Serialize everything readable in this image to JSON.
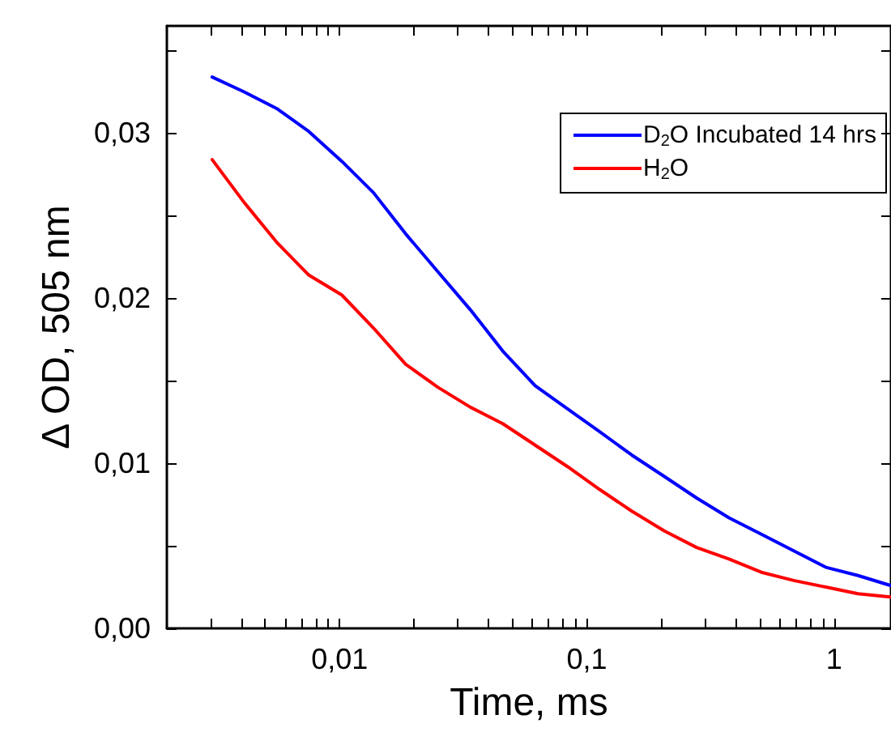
{
  "chart_data": {
    "type": "line",
    "xlabel": "Time, ms",
    "ylabel": "Δ OD, 505 nm",
    "log": "x",
    "xlim": [
      0.002,
      1.7
    ],
    "ylim": [
      0,
      0.0365
    ],
    "xticks": [
      {
        "value": 0.003,
        "label": null
      },
      {
        "value": 0.004,
        "label": null
      },
      {
        "value": 0.005,
        "label": null
      },
      {
        "value": 0.006,
        "label": null
      },
      {
        "value": 0.007,
        "label": null
      },
      {
        "value": 0.008,
        "label": null
      },
      {
        "value": 0.009,
        "label": null
      },
      {
        "value": 0.01,
        "label": "0,01"
      },
      {
        "value": 0.02,
        "label": null
      },
      {
        "value": 0.03,
        "label": null
      },
      {
        "value": 0.04,
        "label": null
      },
      {
        "value": 0.05,
        "label": null
      },
      {
        "value": 0.06,
        "label": null
      },
      {
        "value": 0.07,
        "label": null
      },
      {
        "value": 0.08,
        "label": null
      },
      {
        "value": 0.09,
        "label": null
      },
      {
        "value": 0.1,
        "label": "0,1"
      },
      {
        "value": 0.2,
        "label": null
      },
      {
        "value": 0.3,
        "label": null
      },
      {
        "value": 0.4,
        "label": null
      },
      {
        "value": 0.5,
        "label": null
      },
      {
        "value": 0.6,
        "label": null
      },
      {
        "value": 0.7,
        "label": null
      },
      {
        "value": 0.8,
        "label": null
      },
      {
        "value": 0.9,
        "label": null
      },
      {
        "value": 1,
        "label": "1"
      }
    ],
    "yticks": [
      {
        "value": 0,
        "label": "0,00"
      },
      {
        "value": 0.005,
        "label": null
      },
      {
        "value": 0.01,
        "label": "0,01"
      },
      {
        "value": 0.015,
        "label": null
      },
      {
        "value": 0.02,
        "label": "0,02"
      },
      {
        "value": 0.025,
        "label": null
      },
      {
        "value": 0.03,
        "label": "0,03"
      },
      {
        "value": 0.035,
        "label": null
      }
    ],
    "x": [
      0.00305,
      0.00411,
      0.00556,
      0.00751,
      0.0102,
      0.0137,
      0.0185,
      0.025,
      0.0338,
      0.0457,
      0.0618,
      0.0835,
      0.113,
      0.152,
      0.206,
      0.278,
      0.376,
      0.508,
      0.687,
      0.927,
      1.25,
      1.69
    ],
    "series": [
      {
        "name": "D$_{2}$O Incubated 14 hrs",
        "color": "#0000ff",
        "values": [
          0.0334,
          0.0325,
          0.0315,
          0.0301,
          0.0283,
          0.0264,
          0.0239,
          0.0216,
          0.0193,
          0.0168,
          0.0147,
          0.0133,
          0.0119,
          0.0105,
          0.0092,
          0.0079,
          0.0067,
          0.0057,
          0.0047,
          0.0037,
          0.0032,
          0.0026
        ]
      },
      {
        "name": "H$_{2}$O",
        "color": "#ff0000",
        "values": [
          0.0284,
          0.0258,
          0.0234,
          0.0214,
          0.0202,
          0.0182,
          0.016,
          0.0146,
          0.0134,
          0.0124,
          0.0111,
          0.0098,
          0.0084,
          0.0071,
          0.0059,
          0.0049,
          0.0042,
          0.0034,
          0.0029,
          0.0025,
          0.0021,
          0.0019
        ]
      }
    ],
    "legend": "top right",
    "grid": false,
    "marker": "none",
    "line_style": "solid"
  }
}
